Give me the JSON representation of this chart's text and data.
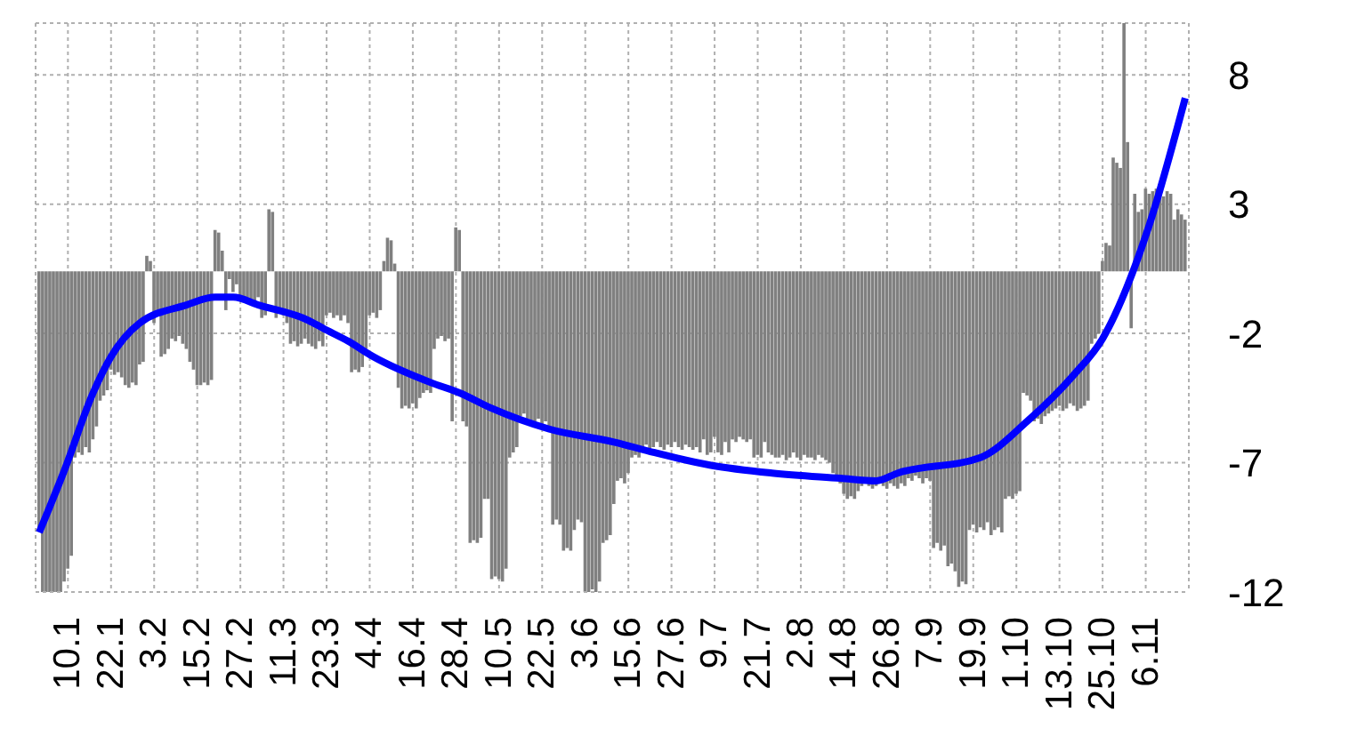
{
  "chart_data": {
    "type": "bar",
    "grid": true,
    "legend": false,
    "x": [
      "--01-02",
      "--01-03",
      "--01-04",
      "--01-05",
      "--01-06",
      "--01-07",
      "--01-08",
      "--01-09",
      "--01-10",
      "--01-11",
      "--01-12",
      "--01-13",
      "--01-14",
      "--01-15",
      "--01-16",
      "--01-17",
      "--01-18",
      "--01-19",
      "--01-20",
      "--01-21",
      "--01-22",
      "--01-23",
      "--01-24",
      "--01-25",
      "--01-26",
      "--01-27",
      "--01-28",
      "--01-29",
      "--01-30",
      "--01-31",
      "--02-01",
      "--02-02",
      "--02-03",
      "--02-04",
      "--02-05",
      "--02-06",
      "--02-07",
      "--02-08",
      "--02-09",
      "--02-10",
      "--02-11",
      "--02-12",
      "--02-13",
      "--02-14",
      "--02-15",
      "--02-16",
      "--02-17",
      "--02-18",
      "--02-19",
      "--02-20",
      "--02-21",
      "--02-22",
      "--02-23",
      "--02-24",
      "--02-25",
      "--02-26",
      "--02-27",
      "--02-28",
      "--03-01",
      "--03-02",
      "--03-03",
      "--03-04",
      "--03-05",
      "--03-06",
      "--03-07",
      "--03-08",
      "--03-09",
      "--03-10",
      "--03-11",
      "--03-12",
      "--03-13",
      "--03-14",
      "--03-15",
      "--03-16",
      "--03-17",
      "--03-18",
      "--03-19",
      "--03-20",
      "--03-21",
      "--03-22",
      "--03-23",
      "--03-24",
      "--03-25",
      "--03-26",
      "--03-27",
      "--03-28",
      "--03-29",
      "--03-30",
      "--03-31",
      "--04-01",
      "--04-02",
      "--04-03",
      "--04-04",
      "--04-05",
      "--04-06",
      "--04-07",
      "--04-08",
      "--04-09",
      "--04-10",
      "--04-11",
      "--04-12",
      "--04-13",
      "--04-14",
      "--04-15",
      "--04-16",
      "--04-17",
      "--04-18",
      "--04-19",
      "--04-20",
      "--04-21",
      "--04-22",
      "--04-23",
      "--04-24",
      "--04-25",
      "--04-26",
      "--04-27",
      "--04-28",
      "--04-29",
      "--04-30",
      "--05-01",
      "--05-02",
      "--05-03",
      "--05-04",
      "--05-05",
      "--05-06",
      "--05-07",
      "--05-08",
      "--05-09",
      "--05-10",
      "--05-11",
      "--05-12",
      "--05-13",
      "--05-14",
      "--05-15",
      "--05-16",
      "--05-17",
      "--05-18",
      "--05-19",
      "--05-20",
      "--05-21",
      "--05-22",
      "--05-23",
      "--05-24",
      "--05-25",
      "--05-26",
      "--05-27",
      "--05-28",
      "--05-29",
      "--05-30",
      "--05-31",
      "--06-01",
      "--06-02",
      "--06-03",
      "--06-04",
      "--06-05",
      "--06-06",
      "--06-07",
      "--06-08",
      "--06-09",
      "--06-10",
      "--06-11",
      "--06-12",
      "--06-13",
      "--06-14",
      "--06-15",
      "--06-16",
      "--06-17",
      "--06-18",
      "--06-19",
      "--06-20",
      "--06-21",
      "--06-22",
      "--06-23",
      "--06-24",
      "--06-25",
      "--06-26",
      "--06-27",
      "--06-28",
      "--06-29",
      "--06-30",
      "--07-01",
      "--07-02",
      "--07-03",
      "--07-04",
      "--07-05",
      "--07-06",
      "--07-07",
      "--07-08",
      "--07-09",
      "--07-10",
      "--07-11",
      "--07-12",
      "--07-13",
      "--07-14",
      "--07-15",
      "--07-16",
      "--07-17",
      "--07-18",
      "--07-19",
      "--07-20",
      "--07-21",
      "--07-22",
      "--07-23",
      "--07-24",
      "--07-25",
      "--07-26",
      "--07-27",
      "--07-28",
      "--07-29",
      "--07-30",
      "--07-31",
      "--08-01",
      "--08-02",
      "--08-03",
      "--08-04",
      "--08-05",
      "--08-06",
      "--08-07",
      "--08-08",
      "--08-09",
      "--08-10",
      "--08-11",
      "--08-12",
      "--08-13",
      "--08-14",
      "--08-15",
      "--08-16",
      "--08-17",
      "--08-18",
      "--08-19",
      "--08-20",
      "--08-21",
      "--08-22",
      "--08-23",
      "--08-24",
      "--08-25",
      "--08-26",
      "--08-27",
      "--08-28",
      "--08-29",
      "--08-30",
      "--08-31",
      "--09-01",
      "--09-02",
      "--09-03",
      "--09-04",
      "--09-05",
      "--09-06",
      "--09-07",
      "--09-08",
      "--09-09",
      "--09-10",
      "--09-11",
      "--09-12",
      "--09-13",
      "--09-14",
      "--09-15",
      "--09-16",
      "--09-17",
      "--09-18",
      "--09-19",
      "--09-20",
      "--09-21",
      "--09-22",
      "--09-23",
      "--09-24",
      "--09-25",
      "--09-26",
      "--09-27",
      "--09-28",
      "--09-29",
      "--09-30",
      "--10-01",
      "--10-02",
      "--10-03",
      "--10-04",
      "--10-05",
      "--10-06",
      "--10-07",
      "--10-08",
      "--10-09",
      "--10-10",
      "--10-11",
      "--10-12",
      "--10-13",
      "--10-14",
      "--10-15",
      "--10-16",
      "--10-17",
      "--10-18",
      "--10-19",
      "--10-20",
      "--10-21",
      "--10-22",
      "--10-23",
      "--10-24",
      "--10-25",
      "--10-26",
      "--10-27",
      "--10-28",
      "--10-29",
      "--10-30",
      "--10-31",
      "--11-01",
      "--11-02",
      "--11-03",
      "--11-04",
      "--11-05",
      "--11-06",
      "--11-07",
      "--11-08",
      "--11-09",
      "--11-10",
      "--11-11",
      "--11-12",
      "--11-13",
      "--11-14",
      "--11-15",
      "--11-16",
      "--11-17"
    ],
    "series": [
      {
        "color": "#808080",
        "values": [
          -10.0,
          -12.4,
          -12.4,
          -12.4,
          -12.4,
          -12.4,
          -12.4,
          -12.0,
          -11.5,
          -11.0,
          -7.2,
          -7.0,
          -7.1,
          -6.8,
          -7.0,
          -6.5,
          -6.0,
          -5.0,
          -4.8,
          -4.6,
          -3.8,
          -4.0,
          -3.9,
          -4.1,
          -4.4,
          -4.5,
          -4.3,
          -4.4,
          -3.6,
          -3.5,
          0.6,
          0.4,
          -2.0,
          -1.5,
          -3.3,
          -3.2,
          -3.0,
          -2.6,
          -2.7,
          -2.5,
          -2.8,
          -3.0,
          -3.5,
          -3.8,
          -4.4,
          -4.4,
          -4.3,
          -4.4,
          -4.2,
          1.6,
          1.5,
          0.8,
          -1.5,
          -0.3,
          -0.8,
          -0.5,
          -1.0,
          -1.2,
          -1.1,
          -1.3,
          -1.2,
          -1.0,
          -1.8,
          -1.7,
          2.4,
          2.3,
          -1.8,
          -1.6,
          -1.7,
          -2.0,
          -2.8,
          -2.7,
          -2.9,
          -2.8,
          -2.6,
          -2.8,
          -2.9,
          -3.0,
          -2.7,
          -2.9,
          -1.7,
          -1.6,
          -1.8,
          -1.7,
          -1.9,
          -1.7,
          -2.0,
          -3.9,
          -3.8,
          -3.9,
          -3.7,
          -3.0,
          -1.7,
          -1.6,
          -1.8,
          -1.5,
          0.4,
          1.3,
          1.2,
          0.3,
          -4.5,
          -5.3,
          -5.2,
          -5.3,
          -5.1,
          -5.3,
          -4.9,
          -4.7,
          -4.6,
          -4.7,
          -3.0,
          -2.6,
          -2.5,
          -2.7,
          -2.6,
          -5.8,
          1.7,
          1.6,
          -5.8,
          -6.0,
          -10.5,
          -10.4,
          -10.5,
          -10.3,
          -8.8,
          -8.8,
          -11.9,
          -11.8,
          -11.9,
          -12.0,
          -11.5,
          -7.2,
          -7.0,
          -6.8,
          -5.6,
          -5.5,
          -5.7,
          -5.8,
          -5.8,
          -5.7,
          -5.9,
          -5.8,
          -6.0,
          -9.8,
          -9.6,
          -9.8,
          -10.8,
          -10.7,
          -10.8,
          -10.0,
          -9.6,
          -9.7,
          -12.4,
          -12.4,
          -12.3,
          -12.4,
          -12.0,
          -10.5,
          -10.4,
          -10.2,
          -9.0,
          -8.1,
          -8.0,
          -8.2,
          -7.8,
          -7.2,
          -7.1,
          -7.2,
          -6.8,
          -6.7,
          -6.9,
          -6.8,
          -6.6,
          -6.8,
          -6.9,
          -6.7,
          -6.8,
          -6.6,
          -6.8,
          -6.9,
          -6.7,
          -6.8,
          -6.9,
          -6.8,
          -7.0,
          -6.5,
          -7.1,
          -7.0,
          -6.4,
          -7.0,
          -7.1,
          -6.6,
          -7.0,
          -6.5,
          -6.6,
          -6.4,
          -6.5,
          -6.6,
          -6.5,
          -7.2,
          -7.1,
          -7.2,
          -6.6,
          -7.0,
          -7.1,
          -7.2,
          -7.2,
          -7.1,
          -7.3,
          -7.2,
          -7.0,
          -7.2,
          -7.3,
          -7.1,
          -7.2,
          -7.2,
          -7.3,
          -7.1,
          -7.2,
          -7.3,
          -7.4,
          -7.8,
          -8.0,
          -8.2,
          -8.6,
          -8.8,
          -8.7,
          -8.8,
          -8.5,
          -8.3,
          -8.2,
          -8.3,
          -8.4,
          -8.3,
          -8.1,
          -8.3,
          -8.4,
          -8.2,
          -8.3,
          -8.4,
          -8.2,
          -8.3,
          -8.0,
          -8.1,
          -7.9,
          -8.0,
          -8.2,
          -8.0,
          -8.1,
          -10.7,
          -10.5,
          -10.8,
          -10.6,
          -11.4,
          -11.3,
          -11.6,
          -12.2,
          -12.0,
          -12.1,
          -10.0,
          -9.8,
          -10.1,
          -9.9,
          -10.0,
          -9.7,
          -10.2,
          -10.0,
          -9.9,
          -10.1,
          -8.8,
          -8.7,
          -8.8,
          -8.6,
          -8.5,
          -4.7,
          -4.8,
          -5.0,
          -5.8,
          -5.7,
          -5.9,
          -5.6,
          -5.5,
          -5.4,
          -5.3,
          -5.2,
          -5.4,
          -5.3,
          -5.1,
          -5.2,
          -5.4,
          -5.3,
          -5.2,
          -5.0,
          -2.8,
          -2.6,
          -2.4,
          0.4,
          1.1,
          1.0,
          4.4,
          4.2,
          4.0,
          9.6,
          5.0,
          -2.2,
          3.0,
          2.3,
          2.4,
          3.2,
          3.0,
          3.1,
          3.2,
          3.0,
          2.9,
          3.1,
          3.0,
          2.0,
          2.4,
          2.2,
          2.0
        ]
      },
      {
        "type": "line",
        "color": "#0000ff",
        "x": [
          "--01-02",
          "--01-09",
          "--01-17",
          "--01-22",
          "--01-30",
          "--02-12",
          "--02-20",
          "--02-25",
          "--03-04",
          "--03-18",
          "--03-22",
          "--03-29",
          "--04-05",
          "--04-21",
          "--04-29",
          "--05-08",
          "--05-24",
          "--06-11",
          "--06-22",
          "--07-08",
          "--07-25",
          "--08-13",
          "--08-23",
          "--08-29",
          "--09-21",
          "--10-04",
          "--10-17",
          "--10-25",
          "--11-07",
          "--11-17"
        ],
        "values": [
          -10.1,
          -7.7,
          -4.7,
          -3.3,
          -2.0,
          -1.3,
          -1.0,
          -1.0,
          -1.3,
          -1.9,
          -2.2,
          -2.7,
          -3.3,
          -4.3,
          -4.7,
          -5.3,
          -6.1,
          -6.6,
          -7.0,
          -7.5,
          -7.8,
          -8.0,
          -8.1,
          -7.8,
          -7.2,
          -5.8,
          -4.0,
          -2.6,
          1.8,
          6.7
        ]
      }
    ],
    "xlim": [
      "--01-01",
      "--11-18"
    ],
    "xticks": [
      {
        "value": "--01-10",
        "label": "10.1"
      },
      {
        "value": "--01-22",
        "label": "22.1"
      },
      {
        "value": "--02-03",
        "label": "3.2"
      },
      {
        "value": "--02-15",
        "label": "15.2"
      },
      {
        "value": "--02-27",
        "label": "27.2"
      },
      {
        "value": "--03-11",
        "label": "11.3"
      },
      {
        "value": "--03-23",
        "label": "23.3"
      },
      {
        "value": "--04-04",
        "label": "4.4"
      },
      {
        "value": "--04-16",
        "label": "16.4"
      },
      {
        "value": "--04-28",
        "label": "28.4"
      },
      {
        "value": "--05-10",
        "label": "10.5"
      },
      {
        "value": "--05-22",
        "label": "22.5"
      },
      {
        "value": "--06-03",
        "label": "3.6"
      },
      {
        "value": "--06-15",
        "label": "15.6"
      },
      {
        "value": "--06-27",
        "label": "27.6"
      },
      {
        "value": "--07-09",
        "label": "9.7"
      },
      {
        "value": "--07-21",
        "label": "21.7"
      },
      {
        "value": "--08-02",
        "label": "2.8"
      },
      {
        "value": "--08-14",
        "label": "14.8"
      },
      {
        "value": "--08-26",
        "label": "26.8"
      },
      {
        "value": "--09-07",
        "label": "7.9"
      },
      {
        "value": "--09-19",
        "label": "19.9"
      },
      {
        "value": "--10-01",
        "label": "1.10"
      },
      {
        "value": "--10-13",
        "label": "13.10"
      },
      {
        "value": "--10-25",
        "label": "25.10"
      },
      {
        "value": "--11-06",
        "label": "6.11"
      }
    ],
    "ylim": [
      -12.4,
      9.6
    ],
    "yticks": [
      {
        "value": -12.4,
        "label": "-12"
      },
      {
        "value": -7.4,
        "label": "-7"
      },
      {
        "value": -2.4,
        "label": "-2"
      },
      {
        "value": 2.6,
        "label": "3"
      },
      {
        "value": 7.6,
        "label": "8"
      }
    ]
  }
}
